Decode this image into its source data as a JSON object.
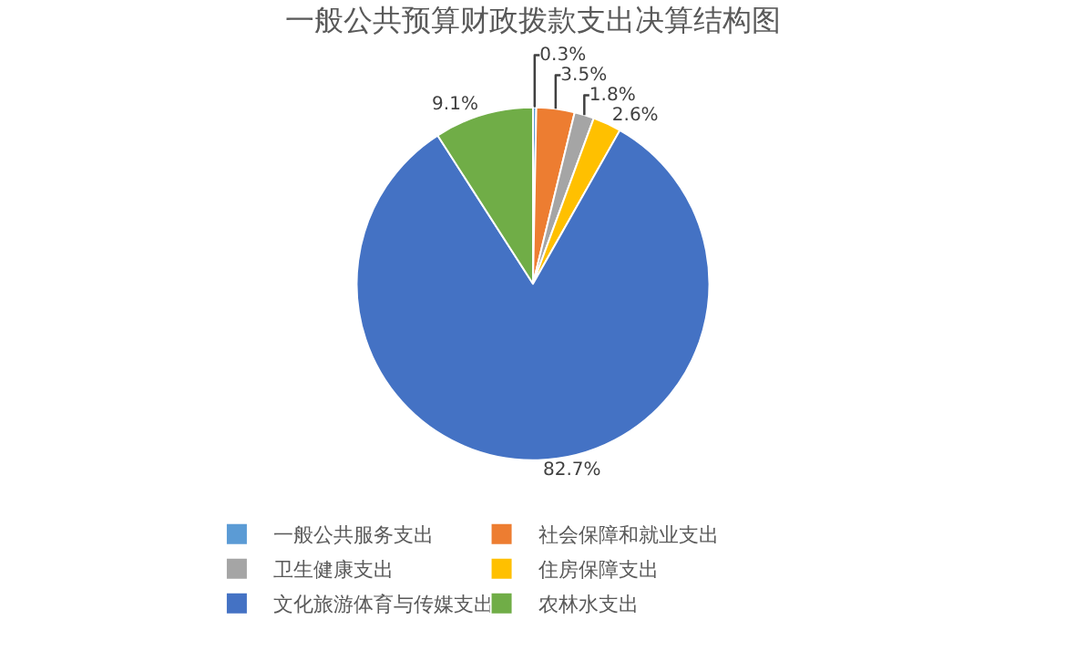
{
  "chart_data": {
    "type": "pie",
    "title": "一般公共预算财政拨款支出决算结构图",
    "categories": [
      "一般公共服务支出",
      "社会保障和就业支出",
      "卫生健康支出",
      "住房保障支出",
      "文化旅游体育与传媒支出",
      "农林水支出"
    ],
    "values": [
      0.3,
      3.5,
      1.8,
      2.6,
      82.7,
      9.1
    ],
    "value_labels": [
      "0.3%",
      "3.5%",
      "1.8%",
      "2.6%",
      "82.7%",
      "9.1%"
    ],
    "colors": [
      "#5b9bd5",
      "#ed7d31",
      "#a5a5a5",
      "#ffc000",
      "#4472c4",
      "#70ad47"
    ],
    "legend": "bottom"
  }
}
